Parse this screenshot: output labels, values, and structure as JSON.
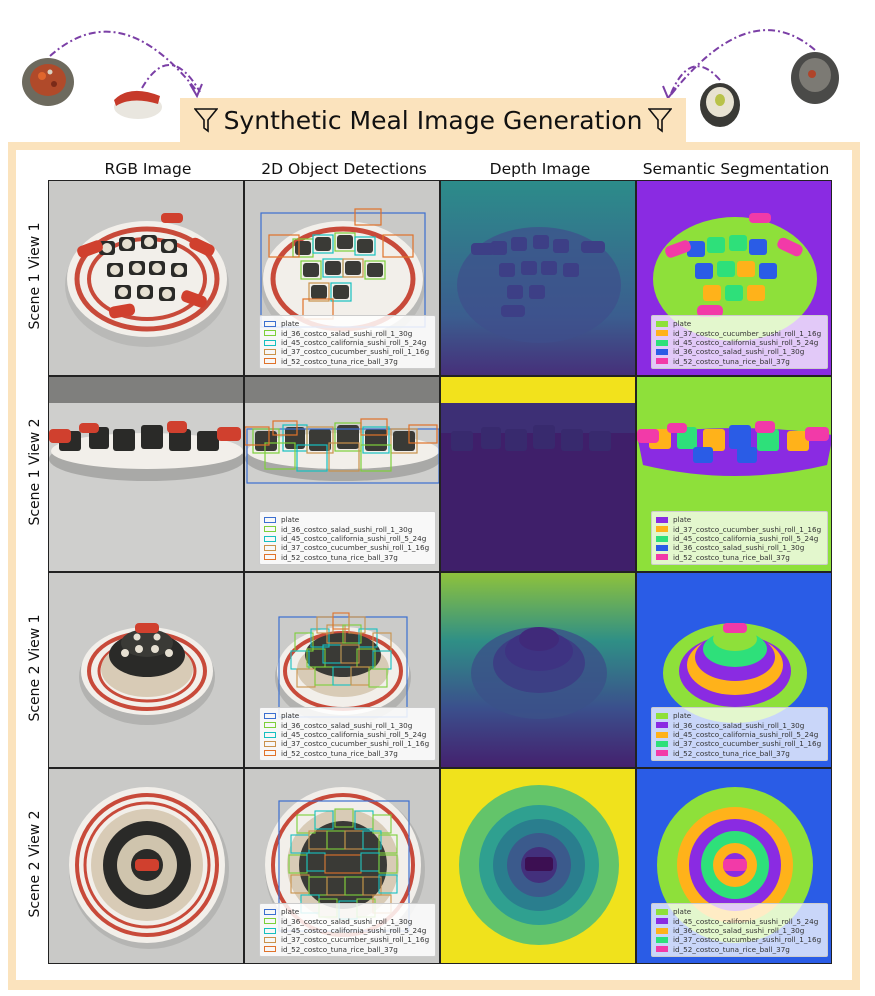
{
  "title": "Synthetic Meal Image Generation",
  "columns": [
    "RGB Image",
    "2D Object Detections",
    "Depth Image",
    "Semantic Segmentation"
  ],
  "rows": [
    "Scene 1 View 1",
    "Scene 1 View 2",
    "Scene 2 View 1",
    "Scene 2 View 2"
  ],
  "colors": {
    "frame": "#fbe3bd",
    "plate": "#3b6fd0",
    "salad_roll": "#7ccf3a",
    "california_roll": "#16c0c0",
    "cucumber_roll": "#c9924b",
    "tuna_rice_ball": "#e0722a",
    "arrow": "#7b3fa6"
  },
  "detection_legends": [
    [
      "plate",
      "id_36_costco_salad_sushi_roll_1_30g",
      "id_45_costco_california_sushi_roll_5_24g",
      "id_37_costco_cucumber_sushi_roll_1_16g",
      "id_52_costco_tuna_rice_ball_37g"
    ],
    [
      "plate",
      "id_36_costco_salad_sushi_roll_1_30g",
      "id_45_costco_california_sushi_roll_5_24g",
      "id_37_costco_cucumber_sushi_roll_1_16g",
      "id_52_costco_tuna_rice_ball_37g"
    ],
    [
      "plate",
      "id_36_costco_salad_sushi_roll_1_30g",
      "id_45_costco_california_sushi_roll_5_24g",
      "id_37_costco_cucumber_sushi_roll_1_16g",
      "id_52_costco_tuna_rice_ball_37g"
    ],
    [
      "plate",
      "id_36_costco_salad_sushi_roll_1_30g",
      "id_45_costco_california_sushi_roll_5_24g",
      "id_37_costco_cucumber_sushi_roll_1_16g",
      "id_52_costco_tuna_rice_ball_37g"
    ]
  ],
  "segmentation_legends": [
    [
      {
        "label": "plate",
        "color": "#8ee03a"
      },
      {
        "label": "id_37_costco_cucumber_sushi_roll_1_16g",
        "color": "#ffb21a"
      },
      {
        "label": "id_45_costco_california_sushi_roll_5_24g",
        "color": "#2ee07a"
      },
      {
        "label": "id_36_costco_salad_sushi_roll_1_30g",
        "color": "#2a5ce6"
      },
      {
        "label": "id_52_costco_tuna_rice_ball_37g",
        "color": "#f23aa8"
      }
    ],
    [
      {
        "label": "plate",
        "color": "#8a2be2"
      },
      {
        "label": "id_37_costco_cucumber_sushi_roll_1_16g",
        "color": "#ffb21a"
      },
      {
        "label": "id_45_costco_california_sushi_roll_5_24g",
        "color": "#2ee07a"
      },
      {
        "label": "id_36_costco_salad_sushi_roll_1_30g",
        "color": "#2a5ce6"
      },
      {
        "label": "id_52_costco_tuna_rice_ball_37g",
        "color": "#f23aa8"
      }
    ],
    [
      {
        "label": "plate",
        "color": "#8ee03a"
      },
      {
        "label": "id_36_costco_salad_sushi_roll_1_30g",
        "color": "#8a2be2"
      },
      {
        "label": "id_45_costco_california_sushi_roll_5_24g",
        "color": "#ffb21a"
      },
      {
        "label": "id_37_costco_cucumber_sushi_roll_1_16g",
        "color": "#2ee07a"
      },
      {
        "label": "id_52_costco_tuna_rice_ball_37g",
        "color": "#f23aa8"
      }
    ],
    [
      {
        "label": "plate",
        "color": "#8ee03a"
      },
      {
        "label": "id_45_costco_california_sushi_roll_5_24g",
        "color": "#8a2be2"
      },
      {
        "label": "id_36_costco_salad_sushi_roll_1_30g",
        "color": "#ffb21a"
      },
      {
        "label": "id_37_costco_cucumber_sushi_roll_1_16g",
        "color": "#2ee07a"
      },
      {
        "label": "id_52_costco_tuna_rice_ball_37g",
        "color": "#f23aa8"
      }
    ]
  ]
}
